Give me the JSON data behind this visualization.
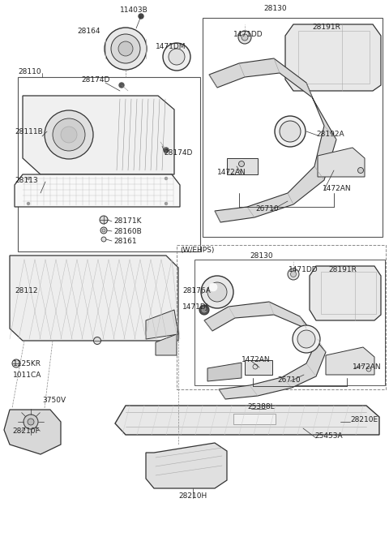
{
  "bg_color": "#ffffff",
  "line_color": "#333333",
  "text_color": "#222222",
  "labels_left_top": [
    [
      "11403B",
      148,
      12
    ],
    [
      "28164",
      95,
      38
    ],
    [
      "1471DM",
      192,
      57
    ],
    [
      "28110",
      22,
      88
    ],
    [
      "28174D",
      100,
      98
    ],
    [
      "28111B",
      18,
      162
    ],
    [
      "28174D",
      202,
      188
    ],
    [
      "28113",
      18,
      222
    ],
    [
      "28171K",
      140,
      272
    ],
    [
      "28160B",
      140,
      285
    ],
    [
      "28161",
      140,
      297
    ]
  ],
  "labels_left_bot": [
    [
      "28112",
      18,
      358
    ],
    [
      "1125KR",
      16,
      448
    ],
    [
      "1011CA",
      16,
      462
    ],
    [
      "3750V",
      52,
      493
    ],
    [
      "28210F",
      15,
      532
    ]
  ],
  "labels_right_top": [
    [
      "28130",
      325,
      10
    ],
    [
      "1471DD",
      288,
      42
    ],
    [
      "28191R",
      385,
      33
    ],
    [
      "28192A",
      390,
      165
    ],
    [
      "1472AN",
      268,
      212
    ],
    [
      "1472AN",
      398,
      232
    ],
    [
      "26710",
      315,
      257
    ]
  ],
  "labels_right_mid": [
    [
      "(W/EHPS)",
      222,
      308
    ],
    [
      "28130",
      308,
      315
    ],
    [
      "1471DD",
      356,
      332
    ],
    [
      "28191R",
      405,
      332
    ],
    [
      "28176A",
      225,
      358
    ],
    [
      "1471DJ",
      225,
      378
    ],
    [
      "1472AN",
      298,
      443
    ],
    [
      "1472AN",
      435,
      452
    ],
    [
      "26710",
      342,
      468
    ]
  ],
  "labels_bottom": [
    [
      "25388L",
      305,
      502
    ],
    [
      "28210E",
      432,
      518
    ],
    [
      "25453A",
      388,
      538
    ],
    [
      "28210H",
      220,
      612
    ]
  ]
}
